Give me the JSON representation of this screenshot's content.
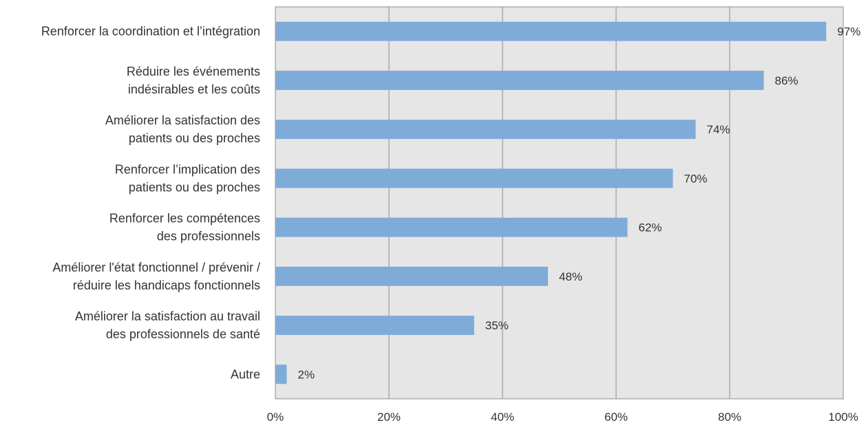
{
  "chart_data": {
    "type": "bar",
    "orientation": "horizontal",
    "categories": [
      [
        "Renforcer la coordination et l’intégration"
      ],
      [
        "Réduire les événements",
        "indésirables et les coûts"
      ],
      [
        "Améliorer la satisfaction des",
        "patients ou des proches"
      ],
      [
        "Renforcer l’implication des",
        "patients ou des proches"
      ],
      [
        "Renforcer les compétences",
        "des professionnels"
      ],
      [
        "Améliorer l'état fonctionnel / prévenir /",
        "réduire les handicaps fonctionnels"
      ],
      [
        "Améliorer la satisfaction au travail",
        "des professionnels de santé"
      ],
      [
        "Autre"
      ]
    ],
    "values": [
      97,
      86,
      74,
      70,
      62,
      48,
      35,
      2
    ],
    "data_labels": [
      "97%",
      "86%",
      "74%",
      "70%",
      "62%",
      "48%",
      "35%",
      "2%"
    ],
    "xlim": [
      0,
      100
    ],
    "xticks": [
      0,
      20,
      40,
      60,
      80,
      100
    ],
    "xtick_labels": [
      "0%",
      "20%",
      "40%",
      "60%",
      "80%",
      "100%"
    ],
    "grid": "vertical",
    "colors": {
      "bar": "#7fabd8",
      "plot_background": "#e6e6e6",
      "grid": "#8c8c8c",
      "text": "#333333"
    }
  }
}
